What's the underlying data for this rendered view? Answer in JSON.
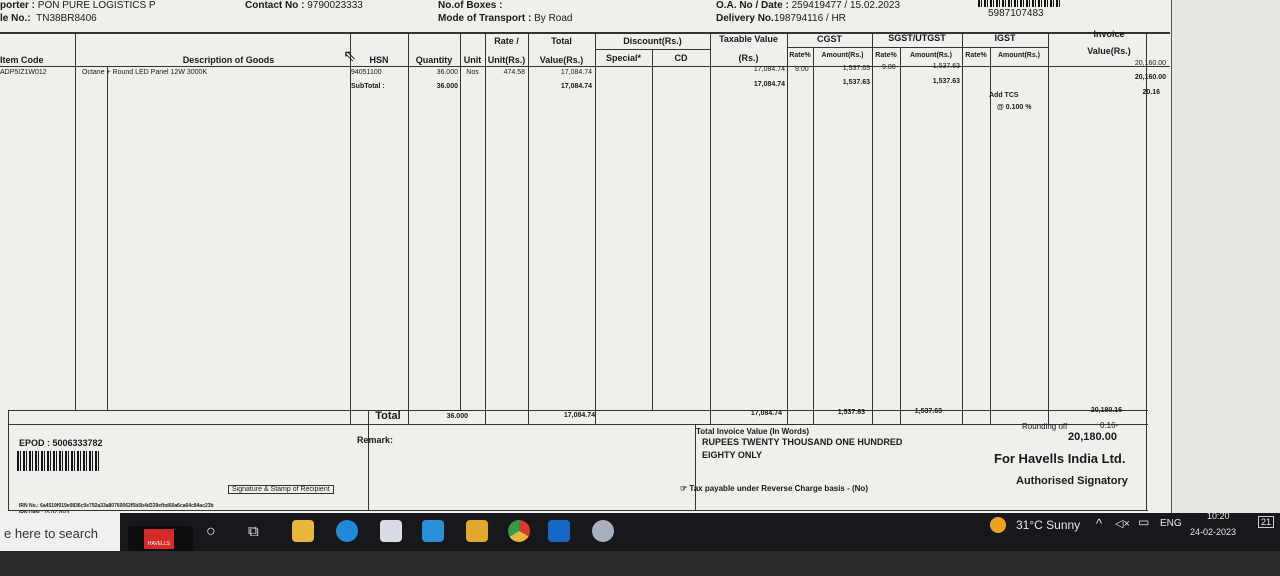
{
  "header": {
    "transporter_label": "porter :",
    "transporter": "PON PURE LOGISTICS P",
    "vehicle_label": "le No.:",
    "vehicle": "TN38BR8406",
    "contact_label": "Contact No :",
    "contact": "9790023333",
    "boxes_label": "No.of Boxes :",
    "transport_label": "Mode of Transport :",
    "transport": "By Road",
    "oa_label": "O.A. No / Date :",
    "oa": "259419477 / 15.02.2023",
    "delivery_label": "Delivery No.",
    "delivery": "198794116 / HR",
    "barcode_number": "5987107483"
  },
  "columns": {
    "item_code": "Item Code",
    "description": "Description of Goods",
    "hsn": "HSN",
    "quantity": "Quantity",
    "unit": "Unit",
    "rate_top": "Rate /",
    "rate_bottom": "Unit(Rs.)",
    "total_top": "Total",
    "total_bottom": "Value(Rs.)",
    "discount": "Discount(Rs.)",
    "special": "Special*",
    "cd": "CD",
    "taxable_top": "Taxable Value",
    "taxable_bottom": "(Rs.)",
    "cgst": "CGST",
    "sgst": "SGST/UTGST",
    "igst": "IGST",
    "rate_pct": "Rate%",
    "amount": "Amount(Rs.)",
    "invoice_top": "Invoice",
    "invoice_bottom": "Value(Rs.)"
  },
  "row": {
    "item_code": "ADP5IZ1W012",
    "description": "Octane + Round LED Panel 12W 3000K",
    "hsn": "94051100",
    "quantity": "36.000",
    "unit": "Nos",
    "rate": "474.58",
    "total": "17,084.74",
    "taxable": "17,084.74",
    "cgst_rate": "9.00",
    "cgst_amount": "1,537.63",
    "sgst_rate": "9.00",
    "sgst_amount": "1,537.63",
    "invoice_value": "20,160.00"
  },
  "subtotal": {
    "label": "SubTotal :",
    "quantity": "36.000",
    "total": "17,084.74",
    "taxable": "17,084.74",
    "cgst_amount": "1,537.63",
    "sgst_amount": "1,537.63",
    "invoice_value": "20,160.00"
  },
  "tcs": {
    "label": "Add TCS",
    "rate": "@ 0.100 %",
    "value": "20.16"
  },
  "totals": {
    "label": "Total",
    "quantity": "36.000",
    "total": "17,084.74",
    "taxable": "17,084.74",
    "cgst": "1,537.63",
    "sgst": "1,537.63",
    "invoice": "20,180.16"
  },
  "footer": {
    "epod": "EPOD : 5006333782",
    "remark": "Remark:",
    "signature_recipient": "Signature & Stamp of Recipient",
    "irn_no": "IRN No.: 6a4519f019e0836c0e792a33a80760062f5b5b4d339efbd60a6ca64c84ac23b",
    "irn_date": "IRN Date : 15.02.2023",
    "words_label": "Total Invoice Value (In Words)",
    "words_line1": "RUPEES  TWENTY THOUSAND ONE HUNDRED",
    "words_line2": "EIGHTY ONLY",
    "reverse_charge": "Tax payable under Reverse Charge basis - (No)",
    "rounding_label": "Rounding off",
    "rounding_value": "0.16-",
    "grand_total": "20,180.00",
    "company": "For Havells India Ltd.",
    "signatory": "Authorised Signatory"
  },
  "taskbar": {
    "search_placeholder": "e here to search",
    "havells_label": "HAVELLS",
    "weather": "31°C  Sunny",
    "language": "ENG",
    "time": "10:20",
    "date": "24-02-2023",
    "notifications": "21"
  }
}
